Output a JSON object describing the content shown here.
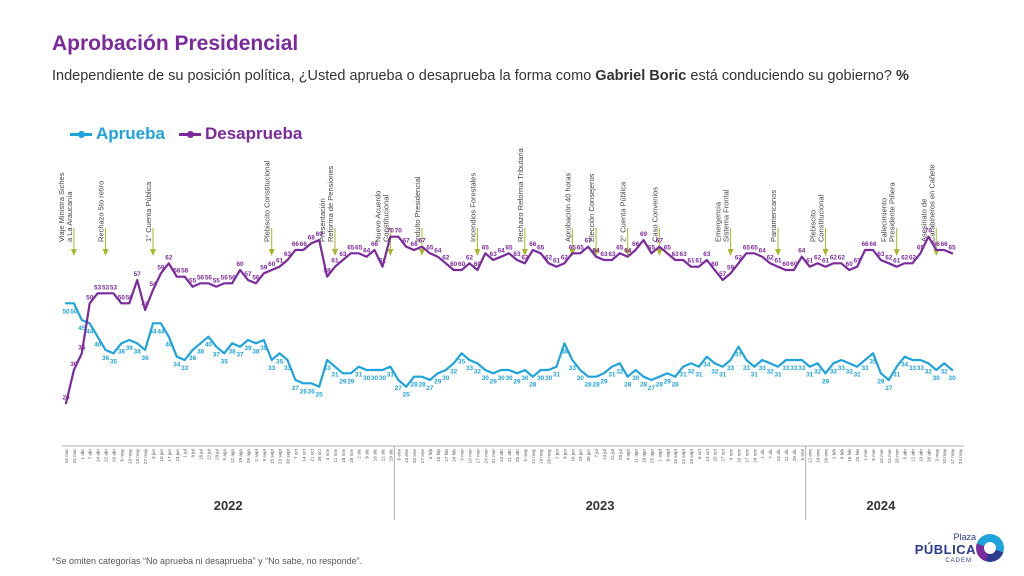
{
  "header": {
    "title": "Aprobación Presidencial",
    "subtitle_pre": "Independiente de su posición política, ¿Usted aprueba o desaprueba la forma como ",
    "subtitle_bold": "Gabriel Boric",
    "subtitle_post": " está conduciendo su gobierno? ",
    "subtitle_unit": "%"
  },
  "footnote": "*Se omiten categorías “No aprueba ni desaprueba” y “No sabe, no responde”.",
  "logo": {
    "line1": "Plaza",
    "line2": "PÚBLICA",
    "line3": "CADEM"
  },
  "colors": {
    "aprueba": "#1fa3dc",
    "desaprueba": "#7a2a9c",
    "event": "#a8b62a"
  },
  "chart_data": {
    "type": "line",
    "title": "Aprobación Presidencial",
    "ylim": [
      15,
      75
    ],
    "grid": false,
    "legend_position": "top-left",
    "years": [
      {
        "label": "2022",
        "start": 0,
        "end": 41
      },
      {
        "label": "2023",
        "start": 42,
        "end": 93
      },
      {
        "label": "2024",
        "start": 94,
        "end": 112
      }
    ],
    "series": [
      {
        "name": "Aprueba",
        "values": [
          50,
          50,
          45,
          44,
          40,
          36,
          35,
          38,
          39,
          38,
          36,
          44,
          44,
          40,
          34,
          33,
          36,
          38,
          40,
          37,
          35,
          38,
          37,
          39,
          38,
          39,
          33,
          35,
          33,
          27,
          26,
          26,
          25,
          33,
          31,
          29,
          29,
          31,
          30,
          30,
          30,
          31,
          27,
          25,
          28,
          28,
          27,
          29,
          30,
          32,
          35,
          33,
          32,
          30,
          29,
          30,
          30,
          29,
          30,
          28,
          30,
          30,
          31,
          38,
          33,
          30,
          28,
          28,
          29,
          31,
          32,
          28,
          30,
          28,
          27,
          28,
          29,
          28,
          31,
          32,
          31,
          34,
          32,
          31,
          33,
          37,
          33,
          31,
          33,
          32,
          31,
          33,
          33,
          33,
          31,
          32,
          29,
          32,
          33,
          32,
          31,
          33,
          35,
          29,
          27,
          31,
          34,
          33,
          33,
          32,
          30,
          32,
          30
        ]
      },
      {
        "name": "Desaprueba",
        "values": [
          20,
          30,
          35,
          50,
          53,
          53,
          53,
          50,
          50,
          57,
          48,
          54,
          59,
          62,
          58,
          58,
          55,
          56,
          56,
          55,
          56,
          56,
          60,
          57,
          56,
          59,
          60,
          61,
          63,
          66,
          66,
          68,
          69,
          58,
          61,
          63,
          65,
          65,
          64,
          66,
          61,
          70,
          70,
          67,
          66,
          67,
          65,
          64,
          62,
          60,
          60,
          62,
          60,
          65,
          63,
          64,
          65,
          63,
          62,
          66,
          65,
          62,
          61,
          62,
          65,
          65,
          67,
          64,
          63,
          63,
          65,
          64,
          66,
          69,
          65,
          67,
          65,
          63,
          63,
          61,
          61,
          63,
          60,
          57,
          59,
          62,
          65,
          65,
          64,
          62,
          61,
          60,
          60,
          64,
          61,
          62,
          61,
          62,
          62,
          60,
          61,
          66,
          66,
          63,
          62,
          61,
          62,
          62,
          65,
          70,
          66,
          66,
          65
        ]
      }
    ],
    "x_labels": [
      "16 mar",
      "25 mar",
      "1 abr",
      "7 abr",
      "14 abr",
      "22 abr",
      "29 abr",
      "6 may",
      "13 may",
      "19 may",
      "27 may",
      "3 jun",
      "10 jun",
      "17 jun",
      "24 jun",
      "1 jul",
      "8 jul",
      "15 jul",
      "22 jul",
      "29 jul",
      "5 ago",
      "12 ago",
      "19 ago",
      "26 ago",
      "2 sept",
      "9 sept",
      "15 sept",
      "23 sept",
      "30 sept",
      "7 oct",
      "14 oct",
      "21 oct",
      "28 oct",
      "4 nov",
      "11 nov",
      "18 nov",
      "25 nov",
      "2 dic",
      "9 dic",
      "16 dic",
      "22 dic",
      "29 dic",
      "6 ene",
      "13 ene",
      "20 ene",
      "27 ene",
      "3 feb",
      "10 feb",
      "17 feb",
      "24 feb",
      "3 mar",
      "10 mar",
      "17 mar",
      "24 mar",
      "31 mar",
      "14 abr",
      "21 abr",
      "28 abr",
      "5 may",
      "12 may",
      "19 may",
      "26 may",
      "2 jun",
      "9 jun",
      "16 jun",
      "23 jun",
      "30 jun",
      "7 jul",
      "14 jul",
      "21 jul",
      "28 jul",
      "4 ago",
      "11 ago",
      "18 ago",
      "25 ago",
      "1 sept",
      "8 sept",
      "15 sept",
      "22 sept",
      "29 sept",
      "6 oct",
      "13 oct",
      "20 oct",
      "27 oct",
      "3 nov",
      "10 nov",
      "17 nov",
      "24 nov",
      "1 dic",
      "7 dic",
      "14 dic",
      "21 dic",
      "29 dic",
      "5 ene",
      "12 ene",
      "19 ene",
      "26 ene",
      "2 feb",
      "9 feb",
      "16 feb",
      "23 feb",
      "1 mar",
      "8 mar",
      "15 mar",
      "22 mar",
      "28 mar",
      "5 abr",
      "12 abr",
      "19 abr",
      "26 abr",
      "3 may",
      "10 may",
      "17 may",
      "24 may"
    ],
    "annotations": [
      {
        "index": 1,
        "text": [
          "Viaje Ministra Siches",
          "a La Araucanía"
        ]
      },
      {
        "index": 5,
        "text": [
          "Rechazo 5to retiro"
        ]
      },
      {
        "index": 11,
        "text": [
          "1° Cuenta Pública"
        ]
      },
      {
        "index": 26,
        "text": [
          "Plebiscito Constitucional"
        ]
      },
      {
        "index": 34,
        "text": [
          "Presentación",
          "Reforma de Pensiones"
        ]
      },
      {
        "index": 41,
        "text": [
          "Nuevo Acuerdo",
          "Constitucional"
        ]
      },
      {
        "index": 45,
        "text": [
          "Indulto Presidencial"
        ]
      },
      {
        "index": 52,
        "text": [
          "Incendios Forestales"
        ]
      },
      {
        "index": 58,
        "text": [
          "Rechazo Reforma Tributaria"
        ]
      },
      {
        "index": 64,
        "text": [
          "Aprobación 40 horas"
        ]
      },
      {
        "index": 67,
        "text": [
          "Elección Consejeros"
        ]
      },
      {
        "index": 71,
        "text": [
          "2° Cuenta Pública"
        ]
      },
      {
        "index": 75,
        "text": [
          "Caso Convenios"
        ]
      },
      {
        "index": 84,
        "text": [
          "Emergencia",
          "Sistema Frontal"
        ]
      },
      {
        "index": 90,
        "text": [
          "Panamericanos"
        ]
      },
      {
        "index": 96,
        "text": [
          "Plebiscito",
          "Constitucional"
        ]
      },
      {
        "index": 105,
        "text": [
          "Fallecimiento",
          "Presidente Piñera"
        ]
      },
      {
        "index": 110,
        "text": [
          "Asesinato de",
          "Carabineros en Cañete"
        ]
      }
    ]
  }
}
